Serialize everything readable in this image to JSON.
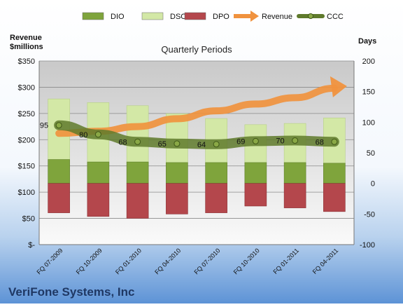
{
  "chart_data": {
    "type": "bar",
    "title": "Quarterly Periods",
    "company": "VeriFone Systems, Inc",
    "left_axis_title_line1": "Revenue",
    "left_axis_title_line2": "$millions",
    "right_axis_title": "Days",
    "categories": [
      "FQ 07-2009",
      "FQ 10-2009",
      "FQ 01-2010",
      "FQ 04-2010",
      "FQ 07-2010",
      "FQ 10-2010",
      "FQ 01-2011",
      "FQ 04-2011"
    ],
    "left_axis": {
      "min": 0,
      "max": 350,
      "step": 50,
      "tick_labels": [
        "$-",
        "$50",
        "$100",
        "$150",
        "$200",
        "$250",
        "$300",
        "$350"
      ]
    },
    "right_axis": {
      "min": -100,
      "max": 200,
      "step": 50,
      "tick_labels": [
        "-100",
        "-50",
        "0",
        "50",
        "100",
        "150",
        "200"
      ]
    },
    "legend": {
      "position": "top",
      "items": [
        {
          "name": "DIO",
          "kind": "bar",
          "color": "#7fa43c"
        },
        {
          "name": "DSO",
          "kind": "bar",
          "color": "#d3e8a6"
        },
        {
          "name": "DPO",
          "kind": "bar",
          "color": "#b4474c"
        },
        {
          "name": "Revenue",
          "kind": "arrow",
          "color": "#f0923e"
        },
        {
          "name": "CCC",
          "kind": "line",
          "color": "#5f7a2c"
        }
      ]
    },
    "series": [
      {
        "name": "DIO",
        "axis": "right",
        "values": [
          39,
          35,
          35,
          34,
          34,
          34,
          34,
          33
        ]
      },
      {
        "name": "DSO",
        "axis": "right",
        "values": [
          99,
          97,
          92,
          80,
          72,
          62,
          64,
          74
        ]
      },
      {
        "name": "DPO",
        "axis": "right",
        "values": [
          -48,
          -54,
          -57,
          -50,
          -48,
          -37,
          -40,
          -46
        ]
      },
      {
        "name": "Revenue",
        "axis": "left",
        "values": [
          212,
          216,
          225,
          240,
          255,
          268,
          280,
          298
        ]
      },
      {
        "name": "CCC",
        "axis": "right",
        "values": [
          95,
          80,
          68,
          65,
          64,
          69,
          70,
          68
        ],
        "data_labels": [
          "95",
          "80",
          "68",
          "65",
          "64",
          "69",
          "70",
          "68"
        ]
      }
    ],
    "colors": {
      "dio": "#7fa43c",
      "dso": "#d3e8a6",
      "dpo": "#b4474c",
      "revenue": "#f0923e",
      "ccc_line": "#5f7a2c",
      "ccc_marker": "#8aa846",
      "title_text": "#1f3864"
    },
    "grid": true
  }
}
